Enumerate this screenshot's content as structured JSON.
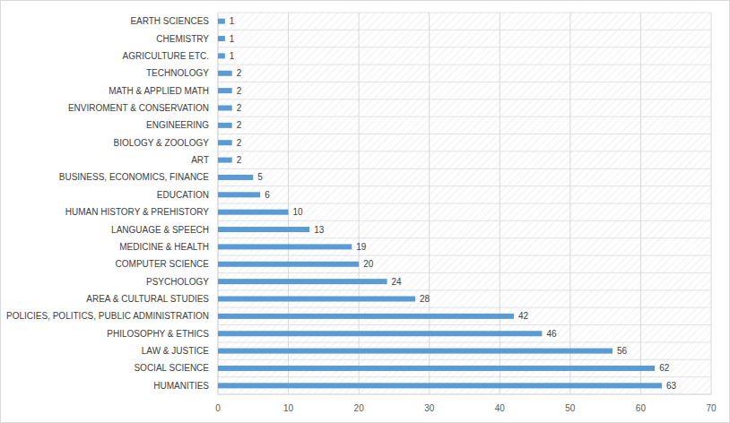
{
  "chart_data": {
    "type": "bar",
    "orientation": "horizontal",
    "categories": [
      "EARTH SCIENCES",
      "CHEMISTRY",
      "AGRICULTURE ETC.",
      "TECHNOLOGY",
      "MATH & APPLIED MATH",
      "ENVIROMENT & CONSERVATION",
      "ENGINEERING",
      "BIOLOGY & ZOOLOGY",
      "ART",
      "BUSINESS, ECONOMICS, FINANCE",
      "EDUCATION",
      "HUMAN HISTORY & PREHISTORY",
      "LANGUAGE & SPEECH",
      "MEDICINE & HEALTH",
      "COMPUTER SCIENCE",
      "PSYCHOLOGY",
      "AREA & CULTURAL STUDIES",
      "POLICIES, POLITICS, PUBLIC ADMINISTRATION",
      "PHILOSOPHY & ETHICS",
      "LAW & JUSTICE",
      "SOCIAL SCIENCE",
      "HUMANITIES"
    ],
    "values": [
      1,
      1,
      1,
      2,
      2,
      2,
      2,
      2,
      2,
      5,
      6,
      10,
      13,
      19,
      20,
      24,
      28,
      42,
      46,
      56,
      62,
      63
    ],
    "color": "#5b9bd5",
    "xlim": [
      0,
      70
    ],
    "xticks": [
      0,
      10,
      20,
      30,
      40,
      50,
      60,
      70
    ],
    "grid": true,
    "data_labels": true
  }
}
